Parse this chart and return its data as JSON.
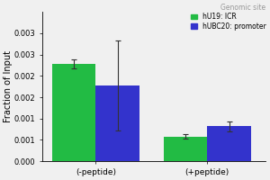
{
  "title": "Genomic site",
  "ylabel": "Fraction of Input",
  "groups": [
    "(-peptide)",
    "(+peptide)"
  ],
  "series": [
    {
      "label": "hU19: ICR",
      "color": "#22bb44",
      "values": [
        0.00228,
        0.00058
      ],
      "errors": [
        0.0001,
        5e-05
      ]
    },
    {
      "label": "hUBC20: promoter",
      "color": "#3333cc",
      "values": [
        0.00178,
        0.00082
      ],
      "errors": [
        0.00105,
        0.00012
      ]
    }
  ],
  "ylim": [
    0,
    0.0035
  ],
  "yticks": [
    0.0,
    0.0005,
    0.001,
    0.0015,
    0.002,
    0.0025,
    0.003
  ],
  "ytick_labels": [
    "0.000",
    "0.001",
    "0.001",
    "0.002",
    "0.002",
    "0.003",
    "0.003"
  ],
  "bar_width": 0.18,
  "group_centers": [
    0.22,
    0.68
  ],
  "background_color": "#f0f0f0",
  "title_fontsize": 5.5,
  "title_color": "#999999",
  "axis_fontsize": 7,
  "tick_fontsize": 6,
  "legend_fontsize": 5.5
}
